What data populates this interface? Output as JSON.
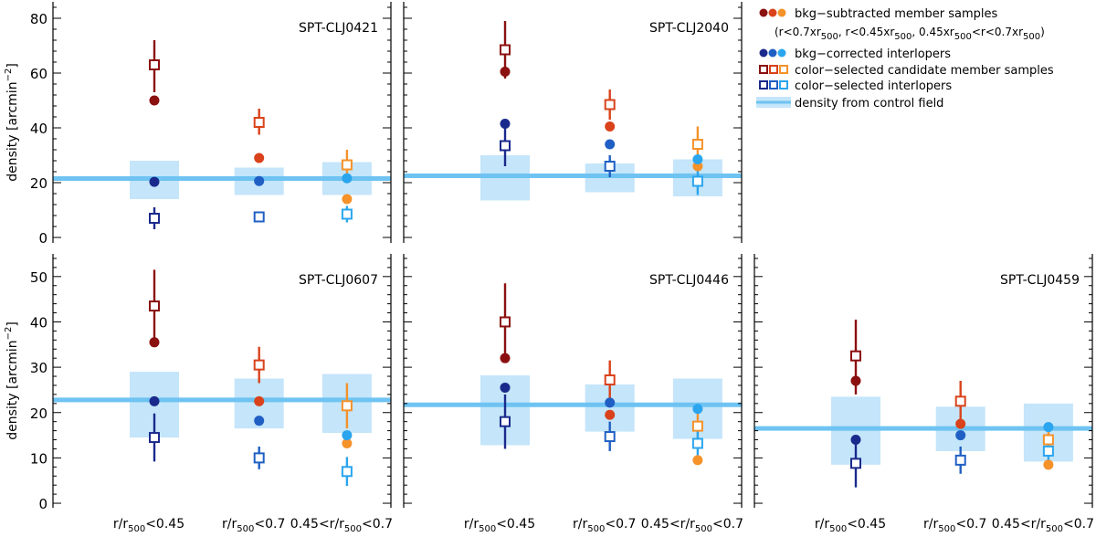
{
  "colors": {
    "bkg_sub": [
      "#8b1010",
      "#d9421a",
      "#f5922a"
    ],
    "bkg_corr": [
      "#1a2a8c",
      "#1f5fc4",
      "#2aa5ee"
    ],
    "cand": [
      "#8b1010",
      "#d9421a",
      "#f5922a"
    ],
    "inter": [
      "#1a2a8c",
      "#1f5fc4",
      "#2aa5ee"
    ],
    "control_line": "#6ec3f2",
    "control_band": "#c4e5fa"
  },
  "legend": {
    "entries": [
      {
        "label": "bkg−subtracted member samples",
        "kind": "dots",
        "group": "bkg_sub"
      },
      {
        "label": "bkg−corrected interlopers",
        "kind": "dots",
        "group": "bkg_corr"
      },
      {
        "label": "color−selected candidate member samples",
        "kind": "squares",
        "group": "cand"
      },
      {
        "label": "color−selected interlopers",
        "kind": "squares",
        "group": "inter"
      },
      {
        "label": "density from control field",
        "kind": "band",
        "group": "control"
      }
    ],
    "sub_parts": [
      "(r<0.7xr",
      "500",
      ",  r<0.45xr",
      "500",
      ",    0.45xr",
      "500",
      "<r<0.7xr",
      "500",
      ")"
    ]
  },
  "x_tick_labels": [
    {
      "pre": "r/r",
      "sub": "500",
      "post": "<0.45"
    },
    {
      "pre": "r/r",
      "sub": "500",
      "post": "<0.7"
    },
    {
      "pre": "0.45<r/r",
      "sub": "500",
      "post": "<0.7"
    }
  ],
  "ylabel": {
    "main": "density [arcmin",
    "sup": "−2",
    "end": "]"
  },
  "chart_data": [
    {
      "type": "scatter",
      "title": "SPT-CLJ0421",
      "ylim": [
        -2,
        86
      ],
      "yticks": [
        0,
        20,
        40,
        60,
        80
      ],
      "categories": [
        "r/r500<0.45",
        "r/r500<0.7",
        "0.45<r/r500<0.7"
      ],
      "control": {
        "line": 21.5,
        "bands": [
          [
            14,
            28
          ],
          [
            15.5,
            25.5
          ],
          [
            15.5,
            27.5
          ]
        ]
      },
      "bkg_subtracted": [
        50,
        29,
        14
      ],
      "bkg_corrected": [
        20.3,
        20.6,
        21.6
      ],
      "candidates": [
        {
          "v": 63,
          "lo": 53,
          "hi": 72
        },
        {
          "v": 42,
          "lo": 37.5,
          "hi": 47
        },
        {
          "v": 26.5,
          "lo": 22,
          "hi": 32
        }
      ],
      "interlopers": [
        {
          "v": 7,
          "lo": 3,
          "hi": 11
        },
        {
          "v": 7.5,
          "lo": 5.5,
          "hi": 9.5
        },
        {
          "v": 8.5,
          "lo": 5.5,
          "hi": 11.5
        }
      ]
    },
    {
      "type": "scatter",
      "title": "SPT-CLJ2040",
      "ylim": [
        -2,
        86
      ],
      "yticks": [
        0,
        20,
        40,
        60,
        80
      ],
      "categories": [
        "r/r500<0.45",
        "r/r500<0.7",
        "0.45<r/r500<0.7"
      ],
      "control": {
        "line": 22.5,
        "bands": [
          [
            13.5,
            30
          ],
          [
            16.5,
            27
          ],
          [
            15,
            28.5
          ]
        ]
      },
      "bkg_subtracted": [
        60.5,
        40.5,
        26
      ],
      "bkg_corrected": [
        41.5,
        34,
        28.5
      ],
      "candidates": [
        {
          "v": 68.5,
          "lo": 58,
          "hi": 79
        },
        {
          "v": 48.5,
          "lo": 43,
          "hi": 54
        },
        {
          "v": 34,
          "lo": 27.5,
          "hi": 40.5
        }
      ],
      "interlopers": [
        {
          "v": 33.5,
          "lo": 26,
          "hi": 41
        },
        {
          "v": 26,
          "lo": 22,
          "hi": 30
        },
        {
          "v": 20.5,
          "lo": 15.5,
          "hi": 25.5
        }
      ]
    },
    {
      "type": "scatter",
      "title": "SPT-CLJ0607",
      "ylim": [
        -1,
        55
      ],
      "yticks": [
        0,
        10,
        20,
        30,
        40,
        50
      ],
      "categories": [
        "r/r500<0.45",
        "r/r500<0.7",
        "0.45<r/r500<0.7"
      ],
      "control": {
        "line": 22.8,
        "bands": [
          [
            14.5,
            29
          ],
          [
            16.5,
            27.5
          ],
          [
            15.5,
            28.5
          ]
        ]
      },
      "bkg_subtracted": [
        35.5,
        22.5,
        13.2
      ],
      "bkg_corrected": [
        22.5,
        18.2,
        15
      ],
      "candidates": [
        {
          "v": 43.5,
          "lo": 35.5,
          "hi": 51.5
        },
        {
          "v": 30.5,
          "lo": 26.5,
          "hi": 34.5
        },
        {
          "v": 21.5,
          "lo": 16.5,
          "hi": 26.5
        }
      ],
      "interlopers": [
        {
          "v": 14.5,
          "lo": 9.2,
          "hi": 19.8
        },
        {
          "v": 10,
          "lo": 7.5,
          "hi": 12.5
        },
        {
          "v": 7,
          "lo": 3.8,
          "hi": 10.2
        }
      ]
    },
    {
      "type": "scatter",
      "title": "SPT-CLJ0446",
      "ylim": [
        -1,
        55
      ],
      "yticks": [
        0,
        10,
        20,
        30,
        40,
        50
      ],
      "categories": [
        "r/r500<0.45",
        "r/r500<0.7",
        "0.45<r/r500<0.7"
      ],
      "control": {
        "line": 21.7,
        "bands": [
          [
            12.8,
            28.2
          ],
          [
            15.8,
            26.2
          ],
          [
            14.2,
            27.5
          ]
        ]
      },
      "bkg_subtracted": [
        32,
        19.5,
        9.5
      ],
      "bkg_corrected": [
        25.5,
        22.2,
        20.8
      ],
      "candidates": [
        {
          "v": 40,
          "lo": 31.5,
          "hi": 48.5
        },
        {
          "v": 27.2,
          "lo": 23,
          "hi": 31.5
        },
        {
          "v": 17,
          "lo": 13,
          "hi": 21
        }
      ],
      "interlopers": [
        {
          "v": 18,
          "lo": 12,
          "hi": 24
        },
        {
          "v": 14.7,
          "lo": 11.5,
          "hi": 18
        },
        {
          "v": 13.2,
          "lo": 10,
          "hi": 16.5
        }
      ]
    },
    {
      "type": "scatter",
      "title": "SPT-CLJ0459",
      "ylim": [
        -1,
        55
      ],
      "yticks": [
        0,
        10,
        20,
        30,
        40,
        50
      ],
      "categories": [
        "r/r500<0.45",
        "r/r500<0.7",
        "0.45<r/r500<0.7"
      ],
      "control": {
        "line": 16.5,
        "bands": [
          [
            8.5,
            23.5
          ],
          [
            11.5,
            21.3
          ],
          [
            9.2,
            22
          ]
        ]
      },
      "bkg_subtracted": [
        27,
        17.5,
        8.5
      ],
      "bkg_corrected": [
        14,
        15,
        16.8
      ],
      "candidates": [
        {
          "v": 32.5,
          "lo": 24,
          "hi": 40.5
        },
        {
          "v": 22.5,
          "lo": 18.5,
          "hi": 27
        },
        {
          "v": 14,
          "lo": 10.5,
          "hi": 17.5
        }
      ],
      "interlopers": [
        {
          "v": 8.8,
          "lo": 3.5,
          "hi": 14
        },
        {
          "v": 9.5,
          "lo": 6.5,
          "hi": 12.5
        },
        {
          "v": 11.5,
          "lo": 8,
          "hi": 15
        }
      ]
    }
  ]
}
